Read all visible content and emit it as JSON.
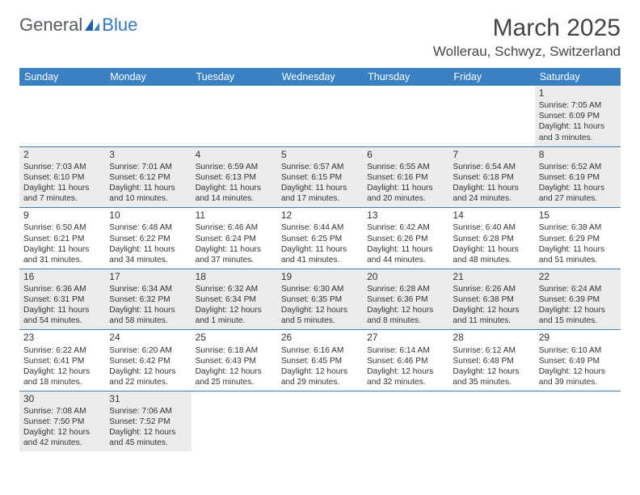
{
  "logo": {
    "general": "General",
    "blue": "Blue"
  },
  "header": {
    "month_title": "March 2025",
    "location": "Wollerau, Schwyz, Switzerland"
  },
  "style": {
    "header_bg": "#3a81c4",
    "header_fg": "#ffffff",
    "shaded_bg": "#ececec",
    "cell_border": "#3a81c4",
    "text_color": "#333333",
    "body_font_size": 10.2,
    "daynum_font_size": 12,
    "th_font_size": 12.5,
    "month_title_size": 30,
    "location_size": 17,
    "columns": 7,
    "rows": 6
  },
  "day_headers": [
    "Sunday",
    "Monday",
    "Tuesday",
    "Wednesday",
    "Thursday",
    "Friday",
    "Saturday"
  ],
  "weeks": [
    [
      null,
      null,
      null,
      null,
      null,
      null,
      {
        "n": "1",
        "sr": "Sunrise: 7:05 AM",
        "ss": "Sunset: 6:09 PM",
        "dl": "Daylight: 11 hours and 3 minutes.",
        "shaded": true
      }
    ],
    [
      {
        "n": "2",
        "sr": "Sunrise: 7:03 AM",
        "ss": "Sunset: 6:10 PM",
        "dl": "Daylight: 11 hours and 7 minutes.",
        "shaded": true
      },
      {
        "n": "3",
        "sr": "Sunrise: 7:01 AM",
        "ss": "Sunset: 6:12 PM",
        "dl": "Daylight: 11 hours and 10 minutes.",
        "shaded": true
      },
      {
        "n": "4",
        "sr": "Sunrise: 6:59 AM",
        "ss": "Sunset: 6:13 PM",
        "dl": "Daylight: 11 hours and 14 minutes.",
        "shaded": true
      },
      {
        "n": "5",
        "sr": "Sunrise: 6:57 AM",
        "ss": "Sunset: 6:15 PM",
        "dl": "Daylight: 11 hours and 17 minutes.",
        "shaded": true
      },
      {
        "n": "6",
        "sr": "Sunrise: 6:55 AM",
        "ss": "Sunset: 6:16 PM",
        "dl": "Daylight: 11 hours and 20 minutes.",
        "shaded": true
      },
      {
        "n": "7",
        "sr": "Sunrise: 6:54 AM",
        "ss": "Sunset: 6:18 PM",
        "dl": "Daylight: 11 hours and 24 minutes.",
        "shaded": true
      },
      {
        "n": "8",
        "sr": "Sunrise: 6:52 AM",
        "ss": "Sunset: 6:19 PM",
        "dl": "Daylight: 11 hours and 27 minutes.",
        "shaded": true
      }
    ],
    [
      {
        "n": "9",
        "sr": "Sunrise: 6:50 AM",
        "ss": "Sunset: 6:21 PM",
        "dl": "Daylight: 11 hours and 31 minutes."
      },
      {
        "n": "10",
        "sr": "Sunrise: 6:48 AM",
        "ss": "Sunset: 6:22 PM",
        "dl": "Daylight: 11 hours and 34 minutes."
      },
      {
        "n": "11",
        "sr": "Sunrise: 6:46 AM",
        "ss": "Sunset: 6:24 PM",
        "dl": "Daylight: 11 hours and 37 minutes."
      },
      {
        "n": "12",
        "sr": "Sunrise: 6:44 AM",
        "ss": "Sunset: 6:25 PM",
        "dl": "Daylight: 11 hours and 41 minutes."
      },
      {
        "n": "13",
        "sr": "Sunrise: 6:42 AM",
        "ss": "Sunset: 6:26 PM",
        "dl": "Daylight: 11 hours and 44 minutes."
      },
      {
        "n": "14",
        "sr": "Sunrise: 6:40 AM",
        "ss": "Sunset: 6:28 PM",
        "dl": "Daylight: 11 hours and 48 minutes."
      },
      {
        "n": "15",
        "sr": "Sunrise: 6:38 AM",
        "ss": "Sunset: 6:29 PM",
        "dl": "Daylight: 11 hours and 51 minutes."
      }
    ],
    [
      {
        "n": "16",
        "sr": "Sunrise: 6:36 AM",
        "ss": "Sunset: 6:31 PM",
        "dl": "Daylight: 11 hours and 54 minutes.",
        "shaded": true
      },
      {
        "n": "17",
        "sr": "Sunrise: 6:34 AM",
        "ss": "Sunset: 6:32 PM",
        "dl": "Daylight: 11 hours and 58 minutes.",
        "shaded": true
      },
      {
        "n": "18",
        "sr": "Sunrise: 6:32 AM",
        "ss": "Sunset: 6:34 PM",
        "dl": "Daylight: 12 hours and 1 minute.",
        "shaded": true
      },
      {
        "n": "19",
        "sr": "Sunrise: 6:30 AM",
        "ss": "Sunset: 6:35 PM",
        "dl": "Daylight: 12 hours and 5 minutes.",
        "shaded": true
      },
      {
        "n": "20",
        "sr": "Sunrise: 6:28 AM",
        "ss": "Sunset: 6:36 PM",
        "dl": "Daylight: 12 hours and 8 minutes.",
        "shaded": true
      },
      {
        "n": "21",
        "sr": "Sunrise: 6:26 AM",
        "ss": "Sunset: 6:38 PM",
        "dl": "Daylight: 12 hours and 11 minutes.",
        "shaded": true
      },
      {
        "n": "22",
        "sr": "Sunrise: 6:24 AM",
        "ss": "Sunset: 6:39 PM",
        "dl": "Daylight: 12 hours and 15 minutes.",
        "shaded": true
      }
    ],
    [
      {
        "n": "23",
        "sr": "Sunrise: 6:22 AM",
        "ss": "Sunset: 6:41 PM",
        "dl": "Daylight: 12 hours and 18 minutes."
      },
      {
        "n": "24",
        "sr": "Sunrise: 6:20 AM",
        "ss": "Sunset: 6:42 PM",
        "dl": "Daylight: 12 hours and 22 minutes."
      },
      {
        "n": "25",
        "sr": "Sunrise: 6:18 AM",
        "ss": "Sunset: 6:43 PM",
        "dl": "Daylight: 12 hours and 25 minutes."
      },
      {
        "n": "26",
        "sr": "Sunrise: 6:16 AM",
        "ss": "Sunset: 6:45 PM",
        "dl": "Daylight: 12 hours and 29 minutes."
      },
      {
        "n": "27",
        "sr": "Sunrise: 6:14 AM",
        "ss": "Sunset: 6:46 PM",
        "dl": "Daylight: 12 hours and 32 minutes."
      },
      {
        "n": "28",
        "sr": "Sunrise: 6:12 AM",
        "ss": "Sunset: 6:48 PM",
        "dl": "Daylight: 12 hours and 35 minutes."
      },
      {
        "n": "29",
        "sr": "Sunrise: 6:10 AM",
        "ss": "Sunset: 6:49 PM",
        "dl": "Daylight: 12 hours and 39 minutes."
      }
    ],
    [
      {
        "n": "30",
        "sr": "Sunrise: 7:08 AM",
        "ss": "Sunset: 7:50 PM",
        "dl": "Daylight: 12 hours and 42 minutes.",
        "shaded": true
      },
      {
        "n": "31",
        "sr": "Sunrise: 7:06 AM",
        "ss": "Sunset: 7:52 PM",
        "dl": "Daylight: 12 hours and 45 minutes.",
        "shaded": true
      },
      null,
      null,
      null,
      null,
      null
    ]
  ]
}
